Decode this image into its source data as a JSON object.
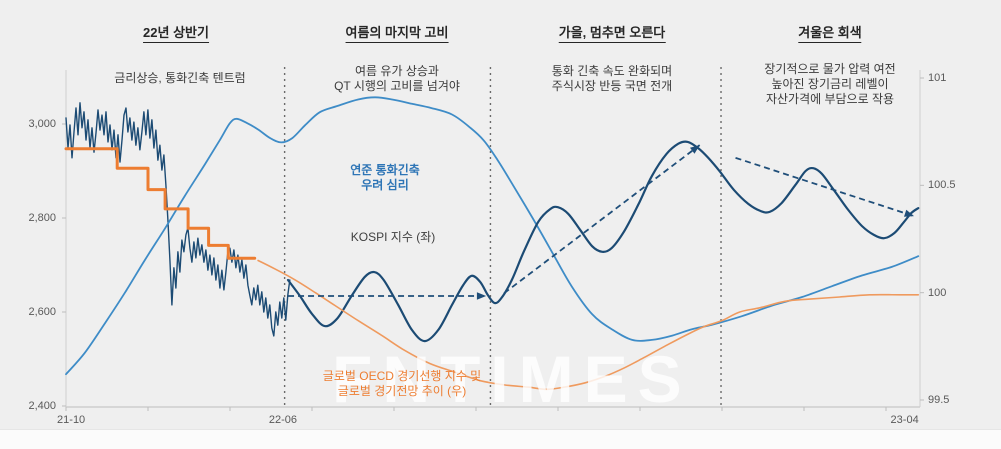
{
  "watermark": "FNTIMES",
  "sections": [
    {
      "title": "22년 상반기",
      "body": "금리상승, 통화긴축 텐트럼"
    },
    {
      "title": "여름의 마지막 고비",
      "body": "여름 유가 상승과\nQT 시행의 고비를 넘겨야"
    },
    {
      "title": "가을, 멈추면 오른다",
      "body": "통화 긴축 속도 완화되며\n주식시장 반등 국면 전개"
    },
    {
      "title": "겨울은 회색",
      "body": "장기적으로 물가 압력 여전\n높아진 장기금리 레벨이\n자산가격에 부담으로 작용"
    }
  ],
  "chart_labels": [
    {
      "id": "fed-sentiment-label",
      "text": "연준 통화긴축\n우려 심리"
    },
    {
      "id": "kospi-label",
      "text": "KOSPI 지수 (좌)"
    },
    {
      "id": "oecd-label",
      "text": "글로벌 OECD 경기선행 지수 및\n글로벌 경기전망 추이 (우)"
    }
  ],
  "chart_data": {
    "type": "line",
    "title": "",
    "x_axis": {
      "range": [
        "21-10",
        "23-04"
      ],
      "labels": [
        {
          "text": "21-10",
          "f": 0.006
        },
        {
          "text": "22-06",
          "f": 0.254
        },
        {
          "text": "23-04",
          "f": 0.982
        }
      ]
    },
    "left_axis": {
      "name": "KOSPI",
      "min": 2400,
      "max": 3000,
      "ticks": [
        {
          "text": "3,000",
          "v": 3000
        },
        {
          "text": "2,800",
          "v": 2800
        },
        {
          "text": "2,600",
          "v": 2600
        },
        {
          "text": "2,400",
          "v": 2400
        }
      ]
    },
    "right_axis": {
      "name": "OECD leading index",
      "min": 99.5,
      "max": 101,
      "ticks": [
        {
          "text": "101",
          "v": 101
        },
        {
          "text": "100.5",
          "v": 100.5
        },
        {
          "text": "100",
          "v": 100
        },
        {
          "text": "99.5",
          "v": 99.5
        }
      ]
    },
    "dividers": [
      0.256,
      0.497,
      0.767
    ],
    "divider_color": "#6a6a6a",
    "series": [
      {
        "id": "kospi-actual",
        "label": "KOSPI 지수 (좌)",
        "axis": "left",
        "color": "#1c4b74",
        "width": 1.4,
        "smooth": false,
        "x_start": 0,
        "x_step": 0.00234,
        "values": [
          3013,
          2949,
          2998,
          2928,
          2983,
          3034,
          2977,
          3045,
          2992,
          3026,
          2966,
          3009,
          2949,
          2992,
          2940,
          2981,
          3030,
          2987,
          3019,
          2977,
          3026,
          2962,
          2998,
          2945,
          2987,
          2928,
          2977,
          2919,
          2966,
          3019,
          3034,
          2983,
          3013,
          2966,
          3004,
          2955,
          2992,
          2945,
          2983,
          3026,
          2977,
          3030,
          2970,
          3009,
          2949,
          2987,
          2923,
          2955,
          2902,
          2934,
          2870,
          2796,
          2711,
          2615,
          2694,
          2651,
          2728,
          2685,
          2753,
          2728,
          2764,
          2779,
          2736,
          2706,
          2749,
          2715,
          2757,
          2721,
          2743,
          2706,
          2732,
          2689,
          2721,
          2679,
          2715,
          2668,
          2700,
          2651,
          2689,
          2647,
          2685,
          2728,
          2736,
          2706,
          2732,
          2694,
          2721,
          2685,
          2711,
          2672,
          2700,
          2657,
          2636,
          2615,
          2651,
          2626,
          2657,
          2615,
          2643,
          2600,
          2630,
          2587,
          2615,
          2566,
          2549,
          2600,
          2572,
          2621,
          2587,
          2630,
          2583,
          2636,
          2668
        ]
      },
      {
        "id": "fed-tightening-sentiment",
        "label": "연준 통화긴축 우려 심리",
        "axis": "right",
        "color": "#3e8cc7",
        "width": 1.8,
        "smooth": true,
        "points": [
          [
            0,
            99.62
          ],
          [
            0.022,
            99.72
          ],
          [
            0.046,
            99.86
          ],
          [
            0.069,
            100.0
          ],
          [
            0.092,
            100.15
          ],
          [
            0.116,
            100.3
          ],
          [
            0.139,
            100.45
          ],
          [
            0.163,
            100.6
          ],
          [
            0.18,
            100.71
          ],
          [
            0.192,
            100.79
          ],
          [
            0.2,
            100.81
          ],
          [
            0.212,
            100.79
          ],
          [
            0.225,
            100.76
          ],
          [
            0.239,
            100.72
          ],
          [
            0.252,
            100.7
          ],
          [
            0.265,
            100.72
          ],
          [
            0.28,
            100.78
          ],
          [
            0.297,
            100.84
          ],
          [
            0.318,
            100.87
          ],
          [
            0.342,
            100.9
          ],
          [
            0.362,
            100.91
          ],
          [
            0.382,
            100.9
          ],
          [
            0.405,
            100.88
          ],
          [
            0.428,
            100.86
          ],
          [
            0.452,
            100.83
          ],
          [
            0.473,
            100.77
          ],
          [
            0.489,
            100.71
          ],
          [
            0.505,
            100.62
          ],
          [
            0.522,
            100.51
          ],
          [
            0.546,
            100.35
          ],
          [
            0.569,
            100.19
          ],
          [
            0.592,
            100.03
          ],
          [
            0.616,
            99.9
          ],
          [
            0.639,
            99.83
          ],
          [
            0.663,
            99.78
          ],
          [
            0.686,
            99.78
          ],
          [
            0.71,
            99.8
          ],
          [
            0.733,
            99.83
          ],
          [
            0.756,
            99.85
          ],
          [
            0.791,
            99.89
          ],
          [
            0.827,
            99.94
          ],
          [
            0.862,
            99.98
          ],
          [
            0.897,
            100.03
          ],
          [
            0.932,
            100.08
          ],
          [
            0.967,
            100.12
          ],
          [
            0.998,
            100.17
          ]
        ]
      },
      {
        "id": "policy-rate-steps",
        "label": "",
        "axis": "right",
        "color": "#ed7d31",
        "width": 3,
        "smooth": false,
        "points": [
          [
            0,
            100.67
          ],
          [
            0.06,
            100.67
          ],
          [
            0.06,
            100.58
          ],
          [
            0.096,
            100.58
          ],
          [
            0.096,
            100.48
          ],
          [
            0.116,
            100.48
          ],
          [
            0.116,
            100.39
          ],
          [
            0.143,
            100.39
          ],
          [
            0.143,
            100.3
          ],
          [
            0.167,
            100.3
          ],
          [
            0.167,
            100.22
          ],
          [
            0.19,
            100.22
          ],
          [
            0.19,
            100.16
          ],
          [
            0.221,
            100.16
          ]
        ]
      },
      {
        "id": "kospi-projection",
        "label": "",
        "axis": "left",
        "color": "#1c4b74",
        "width": 2.2,
        "smooth": true,
        "points": [
          [
            0.26,
            2668
          ],
          [
            0.274,
            2634
          ],
          [
            0.288,
            2596
          ],
          [
            0.303,
            2570
          ],
          [
            0.318,
            2587
          ],
          [
            0.335,
            2636
          ],
          [
            0.35,
            2675
          ],
          [
            0.361,
            2685
          ],
          [
            0.372,
            2668
          ],
          [
            0.389,
            2615
          ],
          [
            0.405,
            2562
          ],
          [
            0.42,
            2538
          ],
          [
            0.436,
            2562
          ],
          [
            0.452,
            2615
          ],
          [
            0.465,
            2657
          ],
          [
            0.475,
            2677
          ],
          [
            0.485,
            2664
          ],
          [
            0.494,
            2636
          ],
          [
            0.502,
            2619
          ],
          [
            0.51,
            2630
          ],
          [
            0.522,
            2668
          ],
          [
            0.536,
            2728
          ],
          [
            0.553,
            2792
          ],
          [
            0.567,
            2819
          ],
          [
            0.576,
            2823
          ],
          [
            0.588,
            2809
          ],
          [
            0.602,
            2775
          ],
          [
            0.616,
            2740
          ],
          [
            0.628,
            2728
          ],
          [
            0.639,
            2736
          ],
          [
            0.653,
            2770
          ],
          [
            0.67,
            2828
          ],
          [
            0.686,
            2889
          ],
          [
            0.703,
            2936
          ],
          [
            0.717,
            2958
          ],
          [
            0.728,
            2962
          ],
          [
            0.74,
            2949
          ],
          [
            0.752,
            2928
          ],
          [
            0.766,
            2898
          ],
          [
            0.782,
            2860
          ],
          [
            0.799,
            2830
          ],
          [
            0.813,
            2815
          ],
          [
            0.824,
            2813
          ],
          [
            0.838,
            2832
          ],
          [
            0.854,
            2870
          ],
          [
            0.866,
            2900
          ],
          [
            0.875,
            2906
          ],
          [
            0.885,
            2894
          ],
          [
            0.899,
            2860
          ],
          [
            0.916,
            2817
          ],
          [
            0.932,
            2783
          ],
          [
            0.946,
            2764
          ],
          [
            0.958,
            2757
          ],
          [
            0.97,
            2768
          ],
          [
            0.981,
            2791
          ],
          [
            0.99,
            2811
          ],
          [
            0.998,
            2821
          ]
        ]
      },
      {
        "id": "oecd-leading-index",
        "label": "글로벌 OECD 경기선행 지수 및 글로벌 경기전망 추이 (우)",
        "axis": "right",
        "color": "#ef9a5e",
        "width": 1.6,
        "smooth": true,
        "points": [
          [
            0.225,
            100.15
          ],
          [
            0.245,
            100.11
          ],
          [
            0.268,
            100.06
          ],
          [
            0.292,
            100.0
          ],
          [
            0.315,
            99.94
          ],
          [
            0.342,
            99.87
          ],
          [
            0.37,
            99.8
          ],
          [
            0.397,
            99.73
          ],
          [
            0.426,
            99.67
          ],
          [
            0.455,
            99.63
          ],
          [
            0.485,
            99.59
          ],
          [
            0.514,
            99.57
          ],
          [
            0.541,
            99.56
          ],
          [
            0.563,
            99.55
          ],
          [
            0.584,
            99.56
          ],
          [
            0.608,
            99.58
          ],
          [
            0.631,
            99.61
          ],
          [
            0.654,
            99.65
          ],
          [
            0.678,
            99.7
          ],
          [
            0.701,
            99.75
          ],
          [
            0.725,
            99.8
          ],
          [
            0.746,
            99.84
          ],
          [
            0.768,
            99.87
          ],
          [
            0.789,
            99.91
          ],
          [
            0.813,
            99.93
          ],
          [
            0.842,
            99.96
          ],
          [
            0.871,
            99.97
          ],
          [
            0.906,
            99.98
          ],
          [
            0.941,
            99.99
          ],
          [
            0.977,
            99.99
          ],
          [
            0.998,
            99.99
          ]
        ]
      }
    ],
    "arrows": [
      {
        "id": "sideways-arrow",
        "axis": "left",
        "from": [
          0.26,
          2634
        ],
        "to": [
          0.492,
          2634
        ]
      },
      {
        "id": "rebound-arrow",
        "axis": "left",
        "from": [
          0.513,
          2640
        ],
        "to": [
          0.742,
          2955
        ]
      },
      {
        "id": "drift-down-arrow",
        "axis": "left",
        "from": [
          0.784,
          2928
        ],
        "to": [
          0.993,
          2804
        ]
      }
    ],
    "arrow_color": "#1f4e79",
    "legend": "none",
    "grid": "off"
  }
}
